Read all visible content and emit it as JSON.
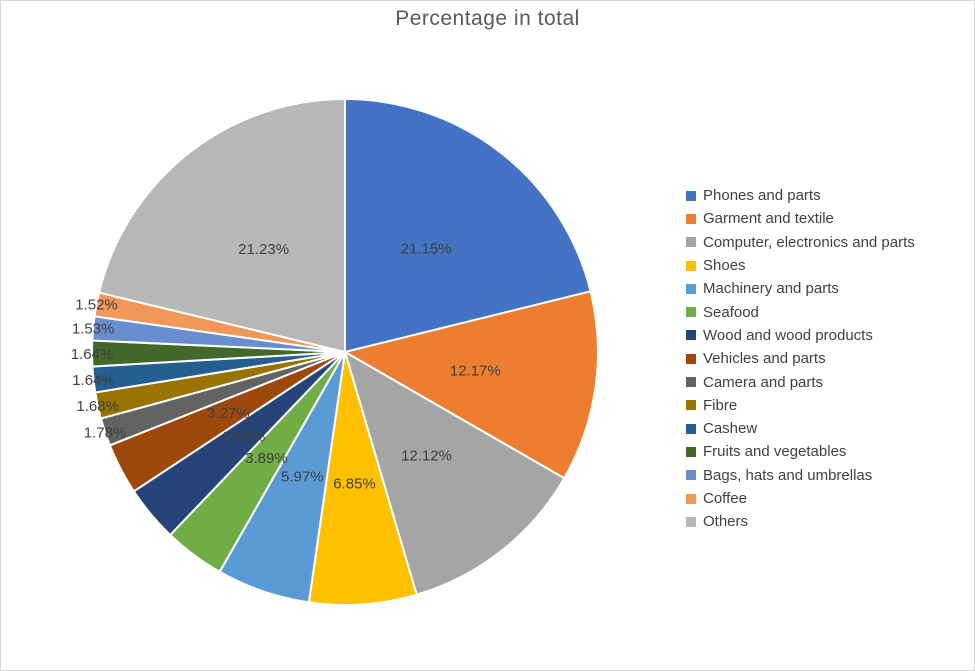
{
  "chart_data": {
    "type": "pie",
    "title": "Percentage in total",
    "unit": "%",
    "legend_position": "right",
    "start_angle_deg": 0,
    "direction": "clockwise",
    "title_color": "#595959",
    "label_color": "#404040",
    "slice_border_color": "#FFFFFF",
    "slices": [
      {
        "label": "Phones and parts",
        "value": 21.15,
        "display": "21.15%",
        "color": "#4472C4"
      },
      {
        "label": "Garment and textile",
        "value": 12.17,
        "display": "12.17%",
        "color": "#ED7D31"
      },
      {
        "label": "Computer, electronics and parts",
        "value": 12.12,
        "display": "12.12%",
        "color": "#A5A5A5"
      },
      {
        "label": "Shoes",
        "value": 6.85,
        "display": "6.85%",
        "color": "#FFC000"
      },
      {
        "label": "Machinery and parts",
        "value": 5.97,
        "display": "5.97%",
        "color": "#5B9BD5"
      },
      {
        "label": "Seafood",
        "value": 3.89,
        "display": "3.89%",
        "color": "#70AD47"
      },
      {
        "label": "Wood and wood products",
        "value": 3.58,
        "display": "3.58%",
        "color": "#264478"
      },
      {
        "label": "Vehicles and parts",
        "value": 3.27,
        "display": "3.27%",
        "color": "#9E480E"
      },
      {
        "label": "Camera and parts",
        "value": 1.78,
        "display": "1.78%",
        "color": "#636363"
      },
      {
        "label": "Fibre",
        "value": 1.68,
        "display": "1.68%",
        "color": "#997300"
      },
      {
        "label": "Cashew",
        "value": 1.64,
        "display": "1.64%",
        "color": "#255E91"
      },
      {
        "label": "Fruits and vegetables",
        "value": 1.64,
        "display": "1.64%",
        "color": "#43682B"
      },
      {
        "label": "Bags, hats and umbrellas",
        "value": 1.53,
        "display": "1.53%",
        "color": "#698ED0"
      },
      {
        "label": "Coffee",
        "value": 1.52,
        "display": "1.52%",
        "color": "#F1975A"
      },
      {
        "label": "Others",
        "value": 21.23,
        "display": "21.23%",
        "color": "#B7B7B7"
      }
    ]
  }
}
